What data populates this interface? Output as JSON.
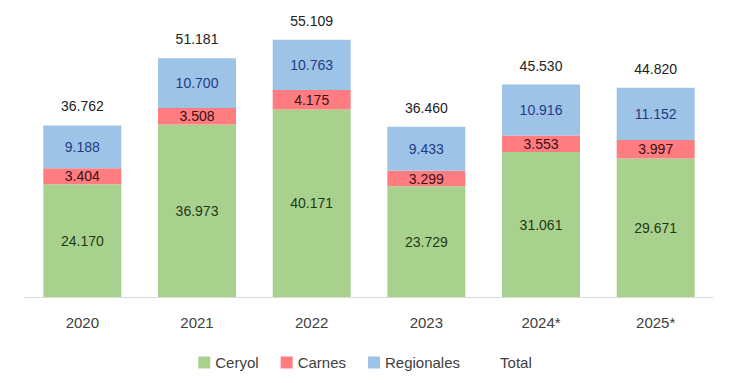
{
  "chart_data": {
    "type": "bar",
    "categories": [
      "2020",
      "2021",
      "2022",
      "2023",
      "2024*",
      "2025*"
    ],
    "stacked": true,
    "data_labels": true,
    "tick_labels": "x",
    "grid": false,
    "legend": "bottom",
    "ylim": [
      0,
      60000
    ],
    "series": [
      {
        "name": "Ceryol",
        "type": "bar",
        "color": "#a9d18e",
        "values": [
          24170,
          36973,
          40171,
          23729,
          31061,
          29671
        ],
        "value_labels": [
          "24.170",
          "36.973",
          "40.171",
          "23.729",
          "31.061",
          "29.671"
        ]
      },
      {
        "name": "Carnes",
        "type": "bar",
        "color": "#ff7c80",
        "values": [
          3404,
          3508,
          4175,
          3299,
          3553,
          3997
        ],
        "value_labels": [
          "3.404",
          "3.508",
          "4.175",
          "3.299",
          "3.553",
          "3.997"
        ]
      },
      {
        "name": "Regionales",
        "type": "bar",
        "color": "#9dc3e6",
        "values": [
          9188,
          10700,
          10763,
          9433,
          10916,
          11152
        ],
        "value_labels": [
          "9.188",
          "10.700",
          "10.763",
          "9.433",
          "10.916",
          "11.152"
        ]
      },
      {
        "name": "Total",
        "type": "line",
        "line_style": "none",
        "marker": "none",
        "values": [
          36762,
          51181,
          55109,
          36460,
          45530,
          44820
        ],
        "value_labels": [
          "36.762",
          "51.181",
          "55.109",
          "36.460",
          "45.530",
          "44.820"
        ]
      }
    ]
  }
}
